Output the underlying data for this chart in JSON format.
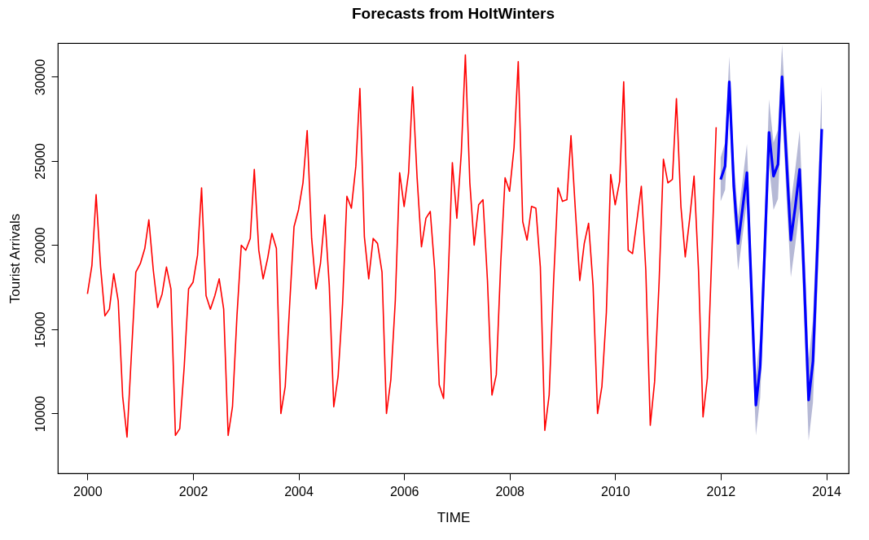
{
  "chart_data": {
    "type": "line",
    "title": "Forecasts from HoltWinters",
    "xlabel": "TIME",
    "ylabel": "Tourist Arrivals",
    "xlim": [
      "1999-06-10",
      "2014-06-05"
    ],
    "xticks": [
      {
        "value": "2000-01",
        "label": "2000"
      },
      {
        "value": "2002-01",
        "label": "2002"
      },
      {
        "value": "2004-01",
        "label": "2004"
      },
      {
        "value": "2006-01",
        "label": "2006"
      },
      {
        "value": "2008-01",
        "label": "2008"
      },
      {
        "value": "2010-01",
        "label": "2010"
      },
      {
        "value": "2012-01",
        "label": "2012"
      },
      {
        "value": "2014-01",
        "label": "2014"
      }
    ],
    "ylim": [
      6450,
      32000
    ],
    "yticks": [
      10000,
      15000,
      20000,
      25000,
      30000
    ],
    "grid": false,
    "marker": "none",
    "line_style": "solid",
    "series": [
      {
        "color": "#ff0000",
        "x": [
          "2000-01",
          "2000-02",
          "2000-03",
          "2000-04",
          "2000-05",
          "2000-06",
          "2000-07",
          "2000-08",
          "2000-09",
          "2000-10",
          "2000-11",
          "2000-12",
          "2001-01",
          "2001-02",
          "2001-03",
          "2001-04",
          "2001-05",
          "2001-06",
          "2001-07",
          "2001-08",
          "2001-09",
          "2001-10",
          "2001-11",
          "2001-12",
          "2002-01",
          "2002-02",
          "2002-03",
          "2002-04",
          "2002-05",
          "2002-06",
          "2002-07",
          "2002-08",
          "2002-09",
          "2002-10",
          "2002-11",
          "2002-12",
          "2003-01",
          "2003-02",
          "2003-03",
          "2003-04",
          "2003-05",
          "2003-06",
          "2003-07",
          "2003-08",
          "2003-09",
          "2003-10",
          "2003-11",
          "2003-12",
          "2004-01",
          "2004-02",
          "2004-03",
          "2004-04",
          "2004-05",
          "2004-06",
          "2004-07",
          "2004-08",
          "2004-09",
          "2004-10",
          "2004-11",
          "2004-12",
          "2005-01",
          "2005-02",
          "2005-03",
          "2005-04",
          "2005-05",
          "2005-06",
          "2005-07",
          "2005-08",
          "2005-09",
          "2005-10",
          "2005-11",
          "2005-12",
          "2006-01",
          "2006-02",
          "2006-03",
          "2006-04",
          "2006-05",
          "2006-06",
          "2006-07",
          "2006-08",
          "2006-09",
          "2006-10",
          "2006-11",
          "2006-12",
          "2007-01",
          "2007-02",
          "2007-03",
          "2007-04",
          "2007-05",
          "2007-06",
          "2007-07",
          "2007-08",
          "2007-09",
          "2007-10",
          "2007-11",
          "2007-12",
          "2008-01",
          "2008-02",
          "2008-03",
          "2008-04",
          "2008-05",
          "2008-06",
          "2008-07",
          "2008-08",
          "2008-09",
          "2008-10",
          "2008-11",
          "2008-12",
          "2009-01",
          "2009-02",
          "2009-03",
          "2009-04",
          "2009-05",
          "2009-06",
          "2009-07",
          "2009-08",
          "2009-09",
          "2009-10",
          "2009-11",
          "2009-12",
          "2010-01",
          "2010-02",
          "2010-03",
          "2010-04",
          "2010-05",
          "2010-06",
          "2010-07",
          "2010-08",
          "2010-09",
          "2010-10",
          "2010-11",
          "2010-12",
          "2011-01",
          "2011-02",
          "2011-03",
          "2011-04",
          "2011-05",
          "2011-06",
          "2011-07",
          "2011-08",
          "2011-09",
          "2011-10",
          "2011-11",
          "2011-12"
        ],
        "values": [
          17100,
          18800,
          23000,
          18700,
          15800,
          16200,
          18300,
          16700,
          11000,
          8600,
          13600,
          18400,
          18900,
          19800,
          21500,
          18500,
          16300,
          17100,
          18700,
          17400,
          8700,
          9100,
          12800,
          17400,
          17800,
          19400,
          23400,
          17000,
          16200,
          17000,
          18000,
          16200,
          8700,
          10400,
          15800,
          20000,
          19700,
          20400,
          24500,
          19700,
          18000,
          19200,
          20700,
          19800,
          10000,
          11600,
          16500,
          21100,
          22100,
          23700,
          26800,
          20400,
          17400,
          18900,
          21800,
          17600,
          10400,
          12200,
          16500,
          22900,
          22200,
          24700,
          29300,
          20500,
          18000,
          20400,
          20100,
          18400,
          10000,
          12000,
          16700,
          24300,
          22300,
          24300,
          29400,
          24000,
          19900,
          21600,
          22000,
          18500,
          11700,
          10900,
          17800,
          24900,
          21600,
          25500,
          31300,
          23700,
          20000,
          22400,
          22700,
          17900,
          11100,
          12300,
          19000,
          24000,
          23200,
          25800,
          30900,
          21400,
          20300,
          22300,
          22200,
          18700,
          9000,
          11100,
          17900,
          23400,
          22600,
          22700,
          26500,
          22000,
          17900,
          20100,
          21300,
          17600,
          10000,
          11600,
          16000,
          24200,
          22400,
          23800,
          29700,
          19700,
          19500,
          21500,
          23500,
          18500,
          9300,
          11900,
          17800,
          25100,
          23700,
          23900,
          28700,
          22300,
          19300,
          21600,
          24100,
          18500,
          9800,
          12100,
          19500,
          27000
        ]
      },
      {
        "color": "#0000ff",
        "x": [
          "2012-01",
          "2012-02",
          "2012-03",
          "2012-04",
          "2012-05",
          "2012-06",
          "2012-07",
          "2012-08",
          "2012-09",
          "2012-10",
          "2012-11",
          "2012-12",
          "2013-01",
          "2013-02",
          "2013-03",
          "2013-04",
          "2013-05",
          "2013-06",
          "2013-07",
          "2013-08",
          "2013-09",
          "2013-10",
          "2013-11",
          "2013-12"
        ],
        "values": [
          23900,
          24700,
          29700,
          23500,
          20100,
          22200,
          24300,
          17400,
          10500,
          12800,
          19700,
          26700,
          24100,
          24800,
          30000,
          25000,
          20300,
          22300,
          24500,
          17900,
          10800,
          13100,
          19900,
          26900
        ],
        "lower": [
          22600,
          23300,
          28200,
          21950,
          18500,
          20550,
          22600,
          15650,
          8700,
          10950,
          17800,
          24750,
          22100,
          22750,
          28100,
          22850,
          18100,
          20050,
          22200,
          15550,
          8400,
          10650,
          17400,
          24350
        ],
        "upper": [
          25200,
          26100,
          31200,
          25050,
          21700,
          23850,
          26000,
          19150,
          12300,
          14650,
          21600,
          28650,
          26100,
          26850,
          31900,
          27150,
          22500,
          24550,
          26800,
          20250,
          13200,
          15550,
          22400,
          29450
        ]
      }
    ]
  }
}
